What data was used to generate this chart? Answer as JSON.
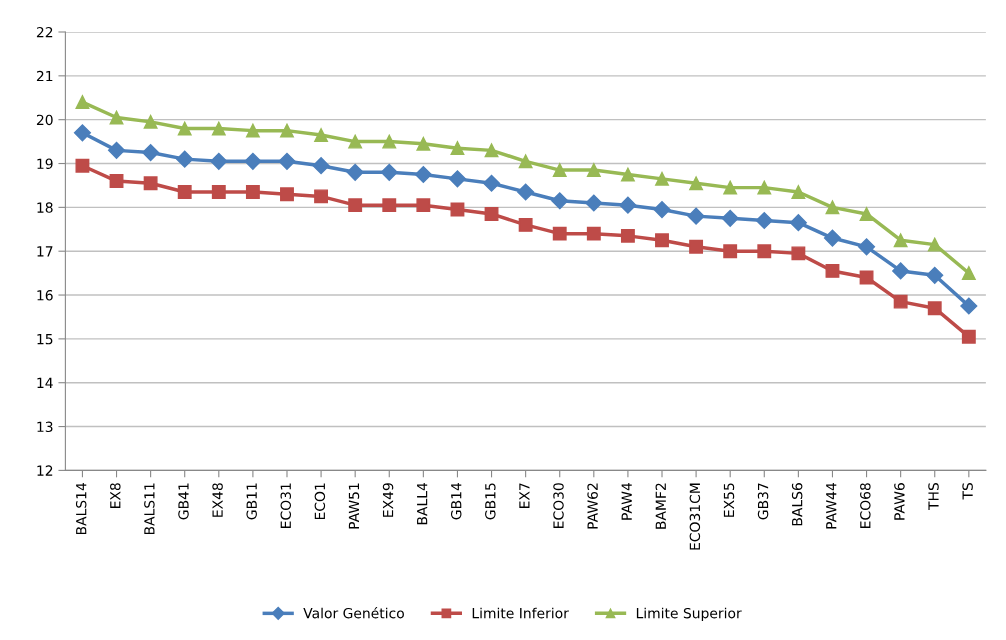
{
  "chart_data": {
    "type": "line",
    "categories": [
      "BALS14",
      "EX8",
      "BALS11",
      "GB41",
      "EX48",
      "GB11",
      "ECO31",
      "ECO1",
      "PAW51",
      "EX49",
      "BALL4",
      "GB14",
      "GB15",
      "EX7",
      "ECO30",
      "PAW62",
      "PAW4",
      "BAMF2",
      "ECO31CM",
      "EX55",
      "GB37",
      "BALS6",
      "PAW44",
      "ECO68",
      "PAW6",
      "THS",
      "TS"
    ],
    "series": [
      {
        "name": "Valor Genético",
        "color": "#4a7ebb",
        "marker": "diamond",
        "values": [
          19.7,
          19.3,
          19.25,
          19.1,
          19.05,
          19.05,
          19.05,
          18.95,
          18.8,
          18.8,
          18.75,
          18.65,
          18.55,
          18.35,
          18.15,
          18.1,
          18.05,
          17.95,
          17.8,
          17.75,
          17.7,
          17.65,
          17.3,
          17.1,
          16.55,
          16.45,
          15.75
        ]
      },
      {
        "name": "Limite Inferior",
        "color": "#be4b48",
        "marker": "square",
        "values": [
          18.95,
          18.6,
          18.55,
          18.35,
          18.35,
          18.35,
          18.3,
          18.25,
          18.05,
          18.05,
          18.05,
          17.95,
          17.85,
          17.6,
          17.4,
          17.4,
          17.35,
          17.25,
          17.1,
          17.0,
          17.0,
          16.95,
          16.55,
          16.4,
          15.85,
          15.7,
          15.05
        ]
      },
      {
        "name": "Limite Superior",
        "color": "#98b954",
        "marker": "triangle",
        "values": [
          20.4,
          20.05,
          19.95,
          19.8,
          19.8,
          19.75,
          19.75,
          19.65,
          19.5,
          19.5,
          19.45,
          19.35,
          19.3,
          19.05,
          18.85,
          18.85,
          18.75,
          18.65,
          18.55,
          18.45,
          18.45,
          18.35,
          18.0,
          17.85,
          17.25,
          17.15,
          16.5
        ]
      }
    ],
    "ylim": [
      12,
      22
    ],
    "yticks": [
      12,
      13,
      14,
      15,
      16,
      17,
      18,
      19,
      20,
      21,
      22
    ],
    "grid": "y",
    "legend": "bottom",
    "line_style": "solid"
  }
}
